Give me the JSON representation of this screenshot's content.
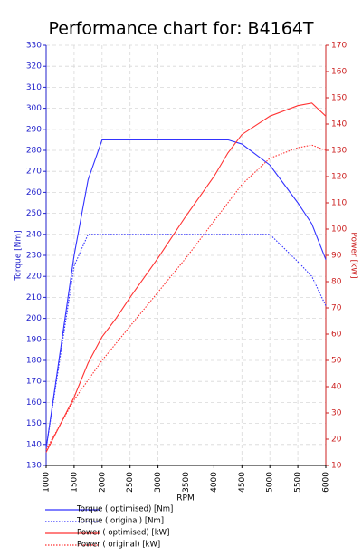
{
  "chart_data": {
    "type": "line",
    "title": "Performance chart for: B4164T",
    "x_label": "RPM",
    "y_label": "Torque [Nm]",
    "y2_label": "Power [kW]",
    "xlim": [
      1000,
      6000
    ],
    "xticks": [
      1000,
      1500,
      2000,
      2500,
      3000,
      3500,
      4000,
      4500,
      5000,
      5500,
      6000
    ],
    "ylim": [
      130,
      330
    ],
    "yticks": [
      130,
      140,
      150,
      160,
      170,
      180,
      190,
      200,
      210,
      220,
      230,
      240,
      250,
      260,
      270,
      280,
      290,
      300,
      310,
      320,
      330
    ],
    "y2lim": [
      10,
      170
    ],
    "y2ticks": [
      10,
      20,
      30,
      40,
      50,
      60,
      70,
      80,
      90,
      100,
      110,
      120,
      130,
      140,
      150,
      160,
      170
    ],
    "grid": true,
    "series": [
      {
        "name": "Torque ( optimised) [Nm]",
        "color": "#3333ff",
        "style": "solid",
        "x": [
          1000,
          1500,
          1750,
          2000,
          4250,
          4500,
          5000,
          5500,
          5750,
          6000
        ],
        "values": [
          138,
          230,
          266,
          285,
          285,
          283,
          273,
          255,
          245,
          228
        ]
      },
      {
        "name": "Torque ( original) [Nm]",
        "color": "#3333ff",
        "style": "dotted",
        "x": [
          1000,
          1500,
          1750,
          5000,
          5500,
          5750,
          6000
        ],
        "values": [
          138,
          225,
          240,
          240,
          227,
          220,
          206
        ]
      },
      {
        "name": "Power ( optimised) [kW]",
        "color": "#ff3333",
        "style": "solid",
        "axis": "y2",
        "x": [
          1000,
          1500,
          1750,
          2000,
          2250,
          2500,
          3000,
          3500,
          4000,
          4250,
          4500,
          5000,
          5500,
          5750,
          6000
        ],
        "values": [
          15,
          36,
          49,
          59,
          66,
          74,
          89,
          105,
          120,
          129,
          136,
          143,
          147,
          148,
          143
        ]
      },
      {
        "name": "Power ( original) [kW]",
        "color": "#ff3333",
        "style": "dotted",
        "axis": "y2",
        "x": [
          1000,
          1500,
          2000,
          2500,
          3000,
          3500,
          4000,
          4500,
          5000,
          5500,
          5750,
          6000
        ],
        "values": [
          16,
          35,
          50,
          63,
          76,
          89,
          103,
          117,
          127,
          131,
          132,
          130
        ]
      }
    ]
  }
}
